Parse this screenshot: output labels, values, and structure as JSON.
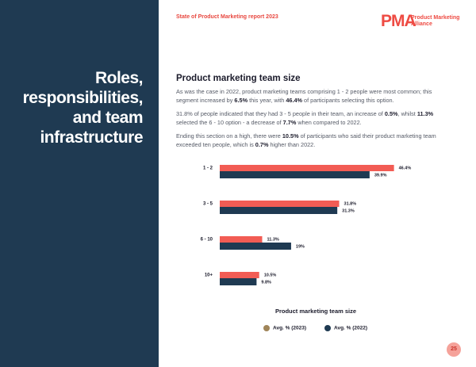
{
  "header": {
    "report_title": "State of Product Marketing report 2023",
    "logo_mark": "PMA",
    "logo_text": [
      "Product Marketing",
      "Alliance"
    ]
  },
  "sidebar": {
    "heading": [
      "Roles,",
      "responsibilities,",
      "and team",
      "infrastructure"
    ]
  },
  "section": {
    "title": "Product marketing team size",
    "paragraphs": [
      [
        "As was the case in 2022, product marketing teams comprising 1 - 2 people were most common; this segment increased by ",
        "6.5%",
        " this year, with ",
        "46.4%",
        " of participants selecting this option."
      ],
      [
        "31.8% of people indicated that they had 3 - 5 people in their team, an increase of ",
        "0.5%",
        ", whilst ",
        "11.3%",
        " selected the 6 - 10 option - a decrease of ",
        "7.7%",
        " when compared to 2022."
      ],
      [
        "Ending this section on a high, there were ",
        "10.5%",
        " of participants who said their product marketing team exceeded ten people, which is ",
        "0.7%",
        " higher than 2022."
      ]
    ]
  },
  "chart_data": {
    "type": "hbar",
    "title": "Product marketing team size",
    "categories": [
      "1 - 2",
      "3 - 5",
      "6 - 10",
      "10+"
    ],
    "xlim": [
      0,
      60
    ],
    "series": [
      {
        "name": "Avg. % (2023)",
        "color": "#f25c54",
        "legend_color": "#a08559",
        "values": [
          46.4,
          31.8,
          11.3,
          10.5
        ],
        "value_labels": [
          "46.4%",
          "31.8%",
          "11.3%",
          "10.5%"
        ]
      },
      {
        "name": "Avg. % (2022)",
        "color": "#1f3a52",
        "legend_color": "#1f3a52",
        "values": [
          39.9,
          31.3,
          19,
          9.8
        ],
        "value_labels": [
          "39.9%",
          "31.3%",
          "19%",
          "9.8%"
        ]
      }
    ]
  },
  "page_number": 25
}
